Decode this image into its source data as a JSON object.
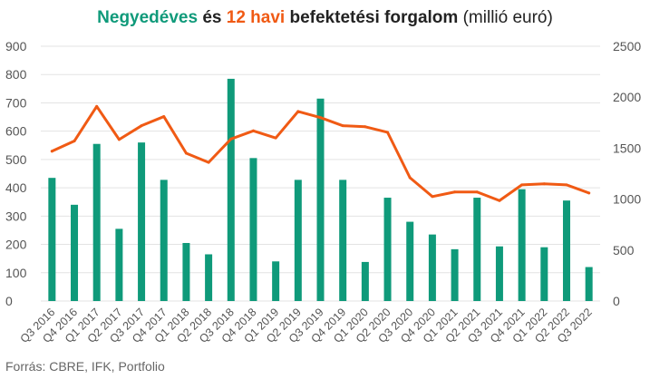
{
  "title": {
    "part1": "Negyedéves",
    "part2": " és ",
    "part3": "12 havi",
    "part4": " befektetési forgalom",
    "part5": " (millió euró)"
  },
  "source": "Forrás: CBRE, IFK, Portfolio",
  "colors": {
    "bar": "#0f9a7a",
    "line": "#f05a14",
    "grid": "#e3e3e3",
    "axis_text": "#555555"
  },
  "chart_data": {
    "type": "bar",
    "categories": [
      "Q3 2016",
      "Q4 2016",
      "Q1 2017",
      "Q2 2017",
      "Q3 2017",
      "Q4 2017",
      "Q1 2018",
      "Q2 2018",
      "Q3 2018",
      "Q4 2018",
      "Q1 2019",
      "Q2 2019",
      "Q3 2019",
      "Q4 2019",
      "Q1 2020",
      "Q2 2020",
      "Q3 2020",
      "Q4 2020",
      "Q1 2021",
      "Q2 2021",
      "Q3 2021",
      "Q4 2021",
      "Q1 2022",
      "Q2 2022",
      "Q3 2022"
    ],
    "series": [
      {
        "name": "Negyedéves",
        "type": "bar",
        "axis": "left",
        "values": [
          435,
          340,
          555,
          255,
          560,
          428,
          205,
          165,
          785,
          505,
          140,
          428,
          715,
          428,
          138,
          365,
          280,
          235,
          183,
          365,
          193,
          395,
          190,
          355,
          120
        ]
      },
      {
        "name": "12 havi",
        "type": "line",
        "axis": "right",
        "values": [
          1470,
          1570,
          1910,
          1585,
          1720,
          1810,
          1450,
          1360,
          1590,
          1670,
          1600,
          1860,
          1800,
          1720,
          1710,
          1655,
          1210,
          1025,
          1070,
          1070,
          985,
          1140,
          1150,
          1140,
          1060
        ]
      }
    ],
    "ylim_left": [
      0,
      900
    ],
    "yticks_left": [
      0,
      100,
      200,
      300,
      400,
      500,
      600,
      700,
      800,
      900
    ],
    "ylim_right": [
      0,
      2500
    ],
    "yticks_right": [
      0,
      500,
      1000,
      1500,
      2000,
      2500
    ],
    "grid": true
  }
}
